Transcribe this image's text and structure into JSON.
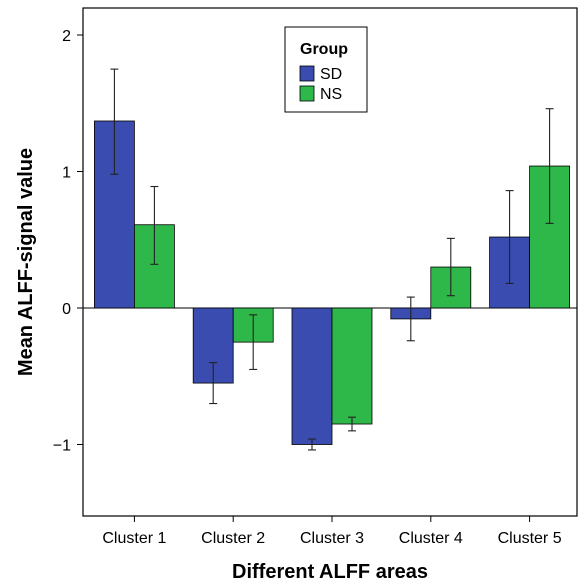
{
  "chart_data": {
    "type": "bar",
    "xlabel": "Different ALFF areas",
    "ylabel": "Mean ALFF-signal value",
    "categories": [
      "Cluster 1",
      "Cluster 2",
      "Cluster 3",
      "Cluster 4",
      "Cluster 5"
    ],
    "ylim": [
      -1.5,
      2.2
    ],
    "yticks": [
      2,
      1,
      0,
      -1
    ],
    "ytick_labels": [
      "2",
      "1",
      "0",
      "−1"
    ],
    "grid": false,
    "legend_placement": "top-center",
    "legend_title": "Group",
    "series": [
      {
        "name": "SD",
        "color": "#3a4cb0",
        "values": [
          1.37,
          -0.55,
          -1.0,
          -0.08,
          0.52
        ],
        "error_low": [
          0.98,
          -0.7,
          -1.04,
          -0.24,
          0.18
        ],
        "error_high": [
          1.75,
          -0.4,
          -0.96,
          0.08,
          0.86
        ]
      },
      {
        "name": "NS",
        "color": "#2fb84a",
        "values": [
          0.61,
          -0.25,
          -0.85,
          0.3,
          1.04
        ],
        "error_low": [
          0.32,
          -0.45,
          -0.9,
          0.09,
          0.62
        ],
        "error_high": [
          0.89,
          -0.05,
          -0.8,
          0.51,
          1.46
        ]
      }
    ]
  }
}
